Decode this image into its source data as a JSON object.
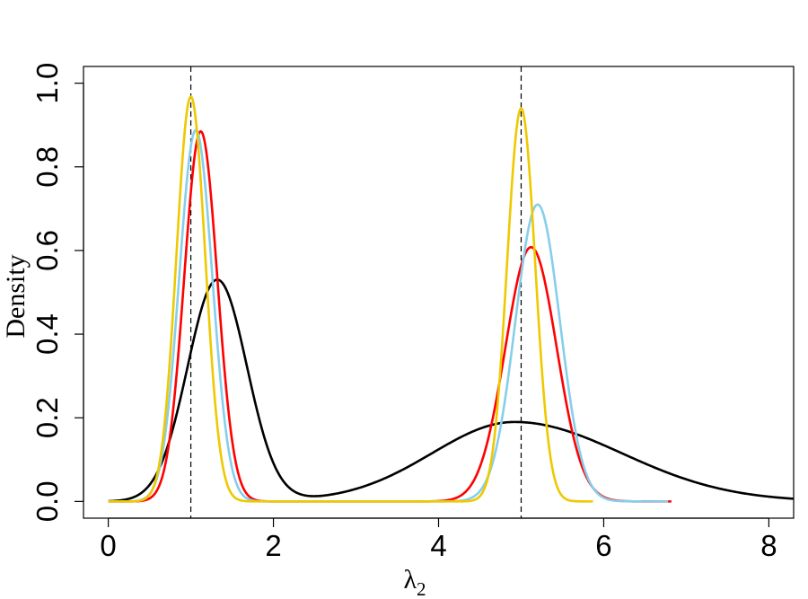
{
  "chart_data": {
    "type": "line",
    "title": "",
    "xlabel": "λ",
    "xlabel_subscript": "2",
    "ylabel": "Density",
    "xlim": [
      -0.3,
      8.3
    ],
    "ylim": [
      -0.04,
      1.04
    ],
    "x_ticks": [
      0,
      2,
      4,
      6,
      8
    ],
    "x_tick_labels": [
      "0",
      "2",
      "4",
      "6",
      "8"
    ],
    "y_ticks": [
      0.0,
      0.2,
      0.4,
      0.6,
      0.8,
      1.0
    ],
    "y_tick_labels": [
      "0.0",
      "0.2",
      "0.4",
      "0.6",
      "0.8",
      "1.0"
    ],
    "reference_lines": [
      1,
      5
    ],
    "grid": false,
    "legend": "none",
    "series": [
      {
        "color": "#000000",
        "x_range": [
          0,
          8.3
        ],
        "peaks": [
          {
            "x": 1.32,
            "y": 0.53,
            "sd": 0.36
          },
          {
            "x": 4.92,
            "y": 0.19,
            "sd_left": 1.0,
            "sd_right": 1.3
          }
        ]
      },
      {
        "color": "#ff0000",
        "x_range": [
          0,
          6.82
        ],
        "peaks": [
          {
            "x": 1.12,
            "y": 0.885,
            "sd": 0.2
          },
          {
            "x": 5.12,
            "y": 0.608,
            "sd": 0.31
          }
        ]
      },
      {
        "color": "#87ceeb",
        "x_range": [
          0,
          6.78
        ],
        "peaks": [
          {
            "x": 1.06,
            "y": 0.888,
            "sd": 0.2
          },
          {
            "x": 5.2,
            "y": 0.71,
            "sd": 0.27
          }
        ]
      },
      {
        "color": "#eec900",
        "x_range": [
          0,
          5.87
        ],
        "peaks": [
          {
            "x": 1.0,
            "y": 0.968,
            "sd": 0.175
          },
          {
            "x": 5.0,
            "y": 0.94,
            "sd": 0.17
          }
        ]
      }
    ]
  }
}
